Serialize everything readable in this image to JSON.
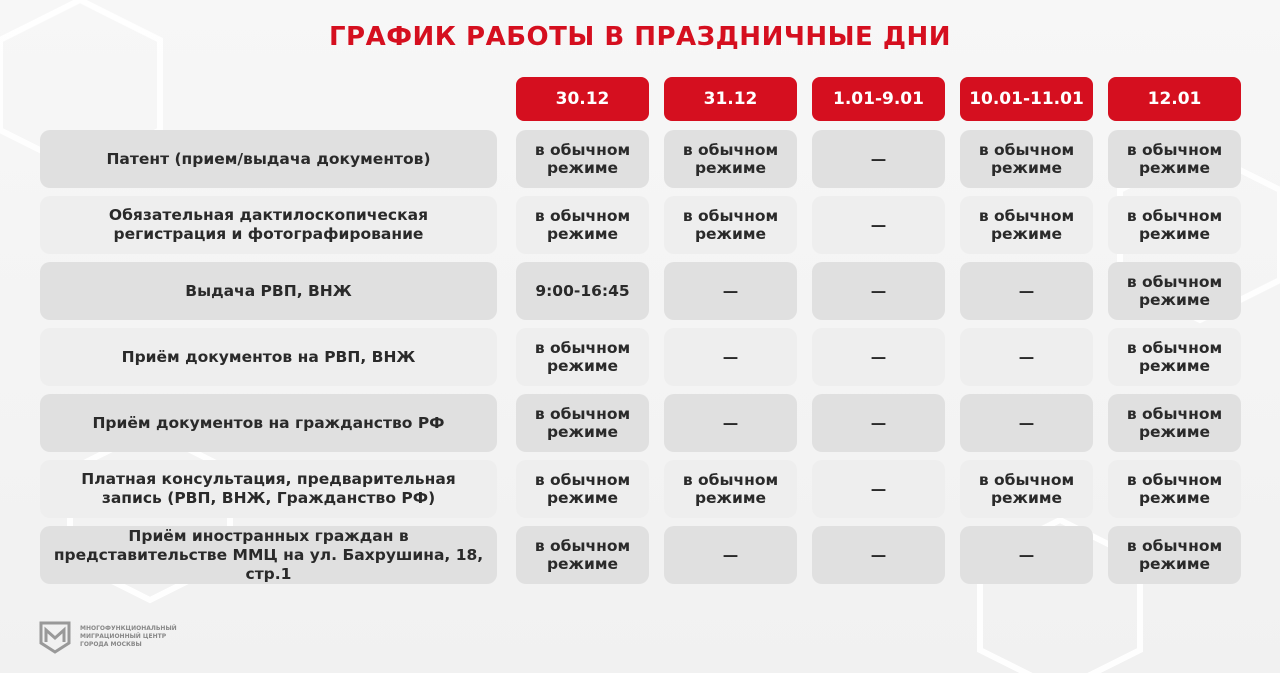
{
  "title": "ГРАФИК РАБОТЫ В ПРАЗДНИЧНЫЕ ДНИ",
  "accent_color": "#d50f1f",
  "columns": [
    "30.12",
    "31.12",
    "1.01-9.01",
    "10.01-11.01",
    "12.01"
  ],
  "rows": [
    {
      "label": "Патент (прием/выдача документов)",
      "values": [
        "в обычном режиме",
        "в обычном режиме",
        "—",
        "в обычном режиме",
        "в обычном режиме"
      ]
    },
    {
      "label": "Обязательная дактилоскопическая регистрация и фотографирование",
      "values": [
        "в обычном режиме",
        "в обычном режиме",
        "—",
        "в обычном режиме",
        "в обычном режиме"
      ]
    },
    {
      "label": "Выдача РВП, ВНЖ",
      "values": [
        "9:00-16:45",
        "—",
        "—",
        "—",
        "в обычном режиме"
      ]
    },
    {
      "label": "Приём документов на РВП, ВНЖ",
      "values": [
        "в обычном режиме",
        "—",
        "—",
        "—",
        "в обычном режиме"
      ]
    },
    {
      "label": "Приём документов на гражданство РФ",
      "values": [
        "в обычном режиме",
        "—",
        "—",
        "—",
        "в обычном режиме"
      ]
    },
    {
      "label": "Платная консультация, предварительная запись (РВП, ВНЖ, Гражданство РФ)",
      "values": [
        "в обычном режиме",
        "в обычном режиме",
        "—",
        "в обычном режиме",
        "в обычном режиме"
      ]
    },
    {
      "label": "Приём иностранных граждан в представительстве ММЦ на ул. Бахрушина, 18, стр.1",
      "values": [
        "в обычном режиме",
        "—",
        "—",
        "—",
        "в обычном режиме"
      ]
    }
  ],
  "logo": {
    "line1": "Многофункциональный",
    "line2": "миграционный центр",
    "line3": "города Москвы",
    "icon": "mmc-logo-icon"
  }
}
